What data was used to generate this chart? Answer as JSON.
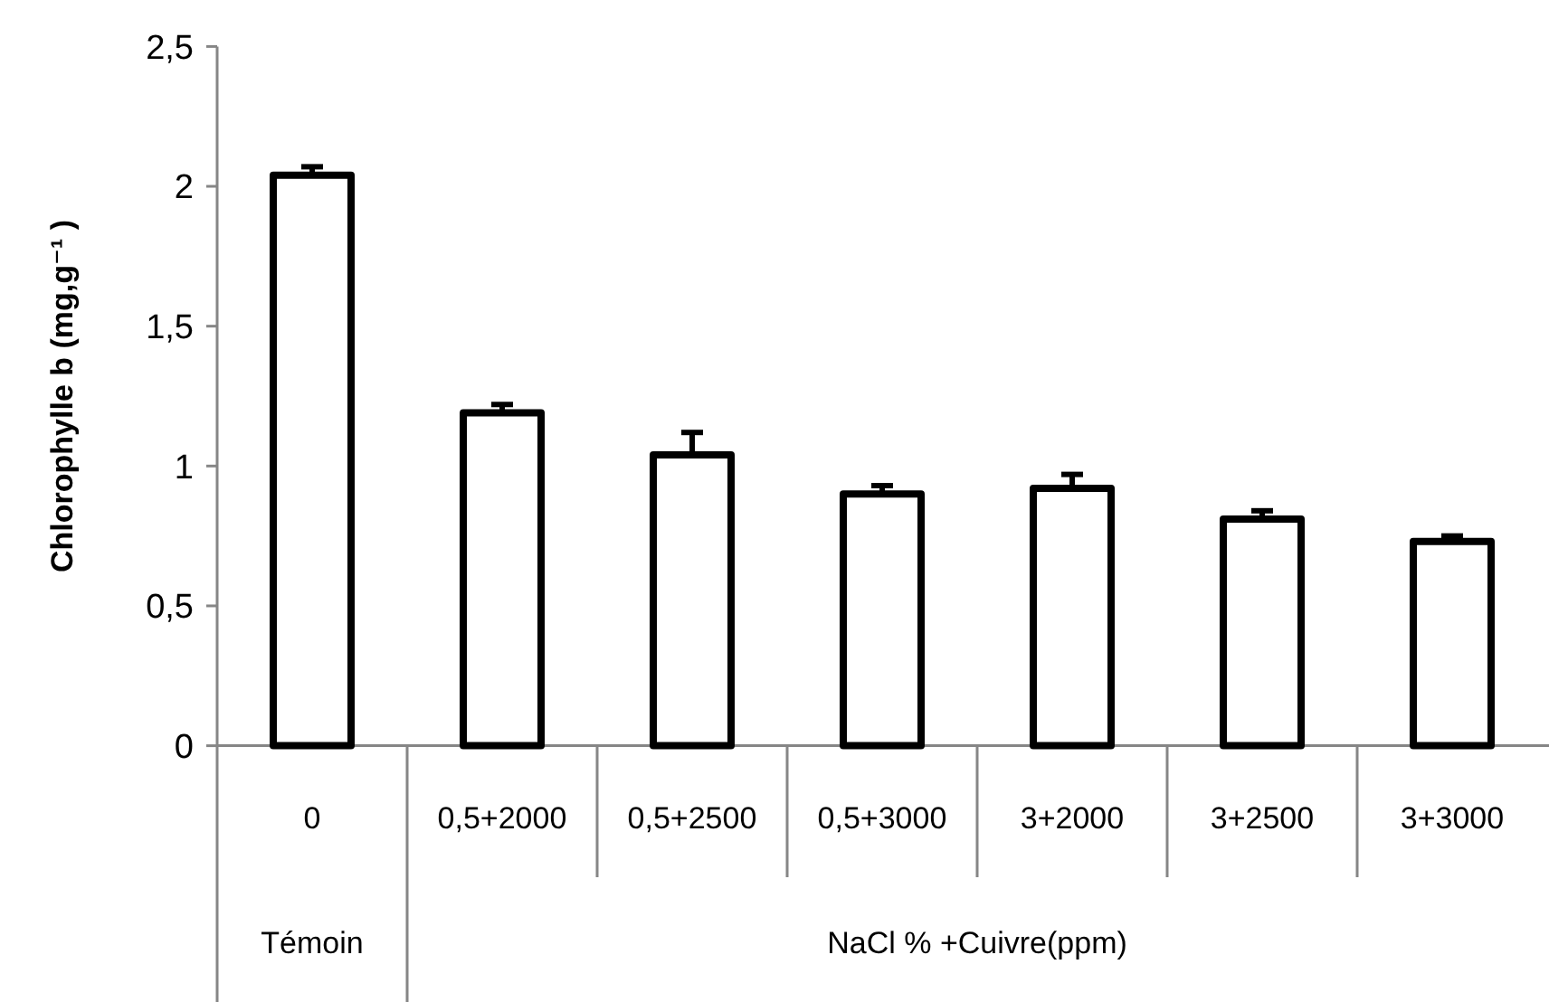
{
  "chart_data": {
    "type": "bar",
    "ylabel": "Chlorophylle b (mg,g⁻¹ )",
    "categories": [
      "0",
      "0,5+2000",
      "0,5+2500",
      "0,5+3000",
      "3+2000",
      "3+2500",
      "3+3000"
    ],
    "values": [
      2.04,
      1.19,
      1.04,
      0.9,
      0.92,
      0.81,
      0.73
    ],
    "errors": [
      0.03,
      0.03,
      0.08,
      0.03,
      0.05,
      0.03,
      0.02
    ],
    "color": "#000000",
    "annotations": [
      "Témoin",
      "NaCl % +Cuivre(ppm)"
    ],
    "ylim": [
      0,
      2.5
    ],
    "yticks": [
      {
        "value": 0,
        "label": "0"
      },
      {
        "value": 0.5,
        "label": "0,5"
      },
      {
        "value": 1,
        "label": "1"
      },
      {
        "value": 1.5,
        "label": "1,5"
      },
      {
        "value": 2,
        "label": "2"
      },
      {
        "value": 2.5,
        "label": "2,5"
      }
    ],
    "grid": false
  }
}
